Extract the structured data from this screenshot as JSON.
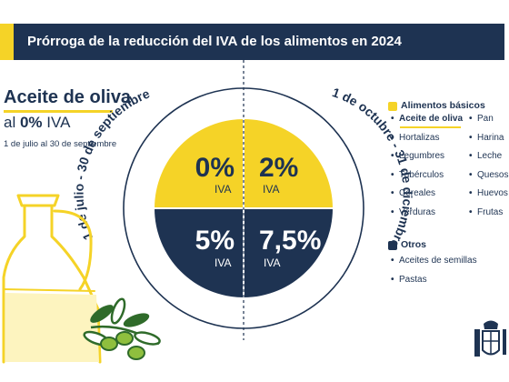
{
  "header": {
    "title": "Prórroga de la reducción del IVA de los alimentos en 2024"
  },
  "left": {
    "title": "Aceite de oliva",
    "subtitle_prefix": "al ",
    "subtitle_rate": "0%",
    "subtitle_suffix": " IVA",
    "dates": "1 de julio al 30 de septiembre"
  },
  "circle": {
    "arc_left": "1 de julio - 30 de septiembre",
    "arc_right": "1 de octubre - 31 de diciembre",
    "quadrants": {
      "top_left": {
        "rate": "0%",
        "label": "IVA"
      },
      "top_right": {
        "rate": "2%",
        "label": "IVA"
      },
      "bottom_left": {
        "rate": "5%",
        "label": "IVA"
      },
      "bottom_right": {
        "rate": "7,5%",
        "label": "IVA"
      }
    }
  },
  "legend": {
    "basic_title": "Alimentos básicos",
    "basic_col1": [
      "Aceite de oliva",
      "Hortalizas",
      "Legumbres",
      "Tubérculos",
      "Cereales",
      "Verduras"
    ],
    "basic_col2": [
      "Pan",
      "Harina",
      "Leche",
      "Quesos",
      "Huevos",
      "Frutas"
    ],
    "others_title": "Otros",
    "others": [
      "Aceites de semillas",
      "Pastas"
    ]
  },
  "colors": {
    "navy": "#1e3352",
    "yellow": "#f5d327",
    "olive_green": "#2f6b2a",
    "bottle_outline": "#f5d327"
  }
}
